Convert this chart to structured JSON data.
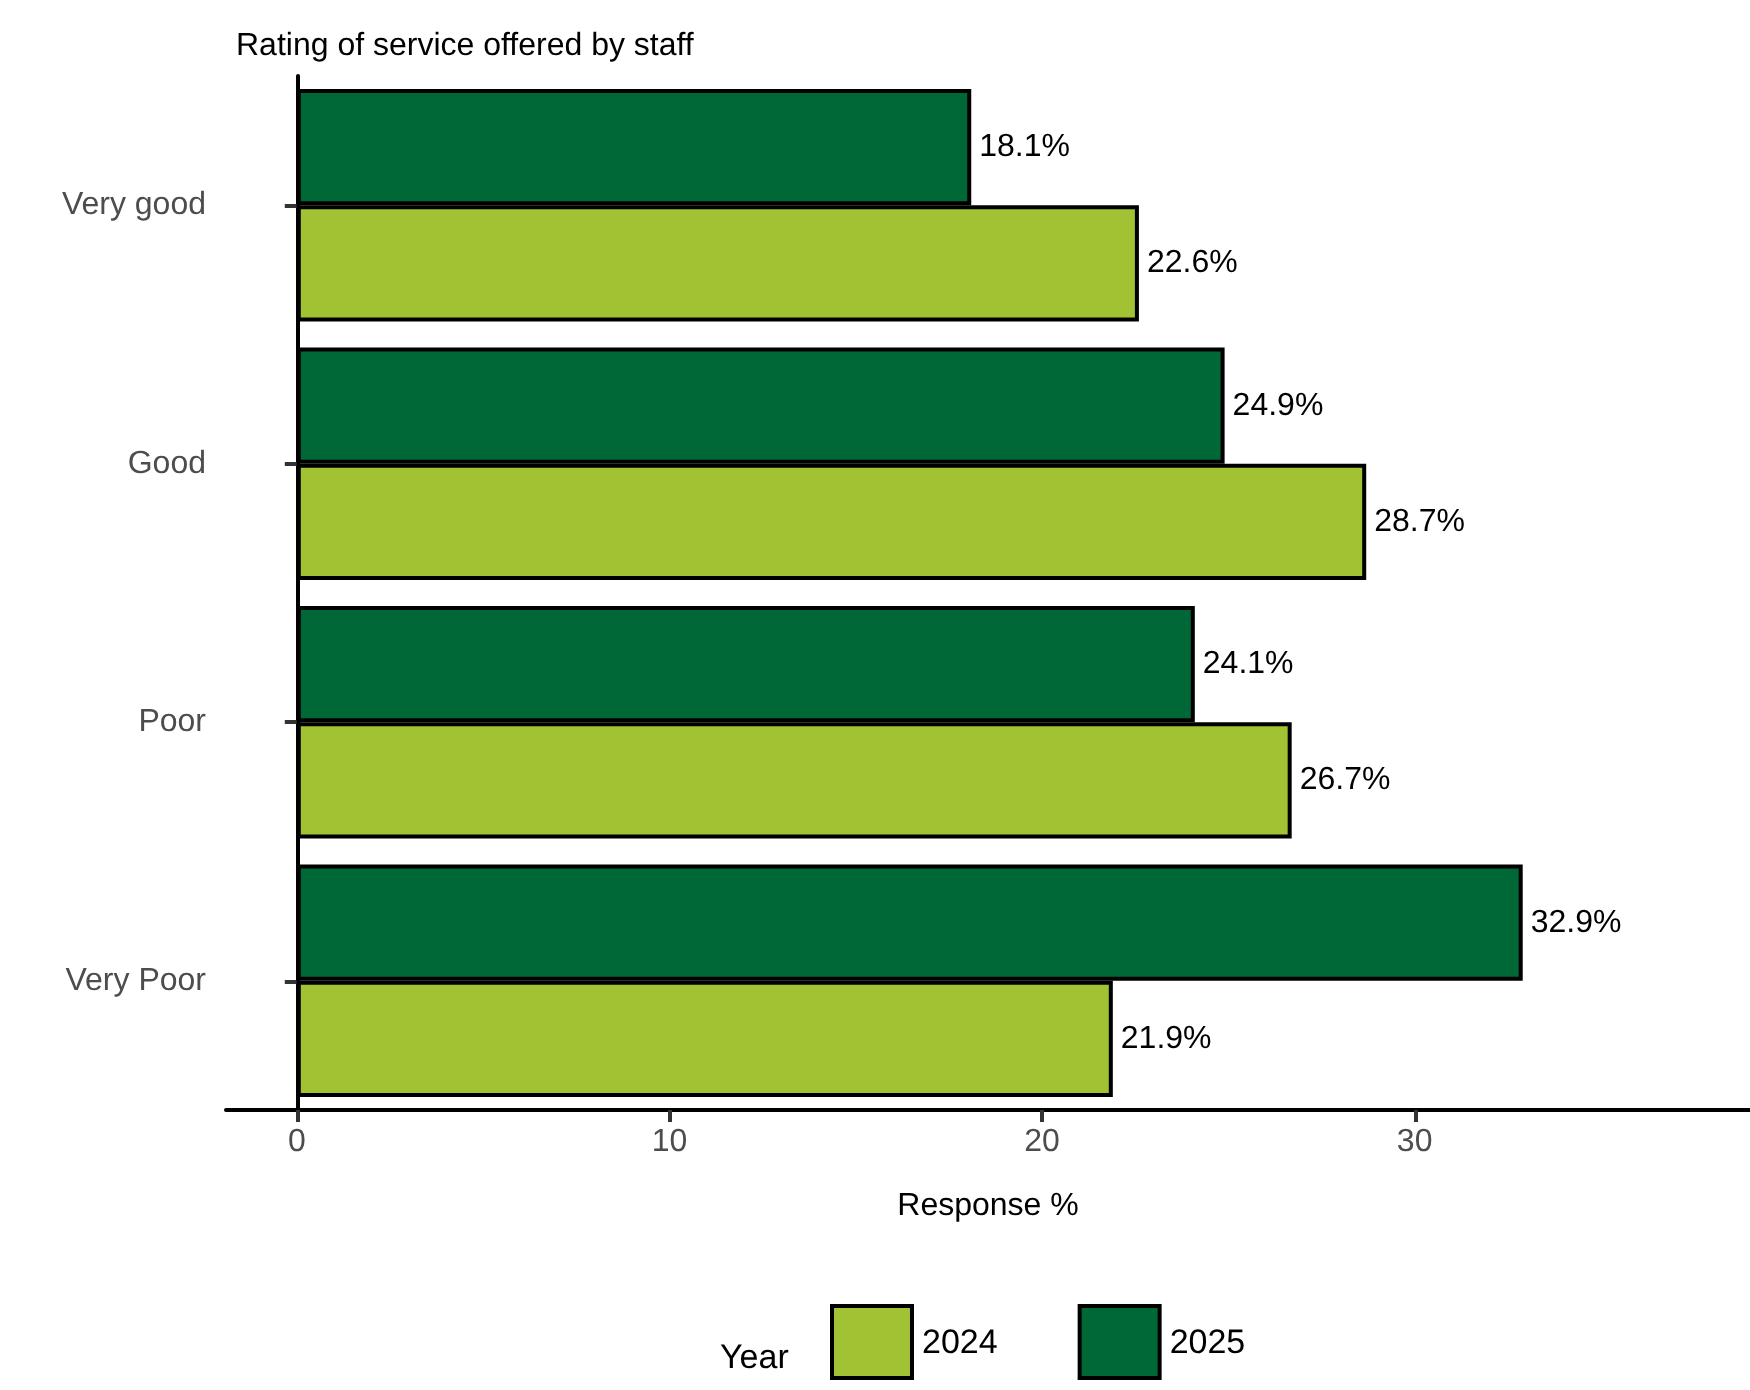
{
  "chart_data": {
    "type": "bar",
    "orientation": "horizontal",
    "title": "Rating of service offered by staff",
    "xlabel": "Response %",
    "legend_title": "Year",
    "legend": "bottom",
    "categories": [
      "Very good",
      "Good",
      "Poor",
      "Very Poor"
    ],
    "series": [
      {
        "name": "2024",
        "color": "#a1c232",
        "values": [
          22.6,
          28.7,
          26.7,
          21.9
        ],
        "value_labels": [
          "22.6%",
          "28.7%",
          "26.7%",
          "21.9%"
        ]
      },
      {
        "name": "2025",
        "color": "#006837",
        "values": [
          18.1,
          24.9,
          24.1,
          32.9
        ],
        "value_labels": [
          "18.1%",
          "24.9%",
          "24.1%",
          "32.9%"
        ]
      }
    ],
    "xlim": [
      -1.9,
      39
    ],
    "xticks": [
      0,
      10,
      20,
      30
    ]
  }
}
